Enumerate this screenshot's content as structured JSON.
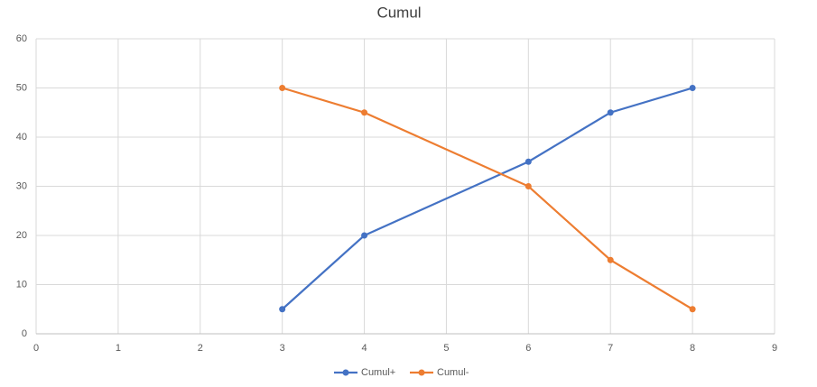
{
  "chart_data": {
    "type": "line",
    "title": "Cumul",
    "x": [
      3,
      4,
      6,
      7,
      8
    ],
    "series": [
      {
        "name": "Cumul+",
        "color": "#4472c4",
        "values": [
          5,
          20,
          35,
          45,
          50
        ]
      },
      {
        "name": "Cumul-",
        "color": "#ed7d31",
        "values": [
          50,
          45,
          30,
          15,
          5
        ]
      }
    ],
    "xlim": [
      0,
      9
    ],
    "xticks": [
      0,
      1,
      2,
      3,
      4,
      5,
      6,
      7,
      8,
      9
    ],
    "ylim": [
      0,
      60
    ],
    "yticks": [
      0,
      10,
      20,
      30,
      40,
      50,
      60
    ],
    "grid": true,
    "legend": "bottom"
  }
}
